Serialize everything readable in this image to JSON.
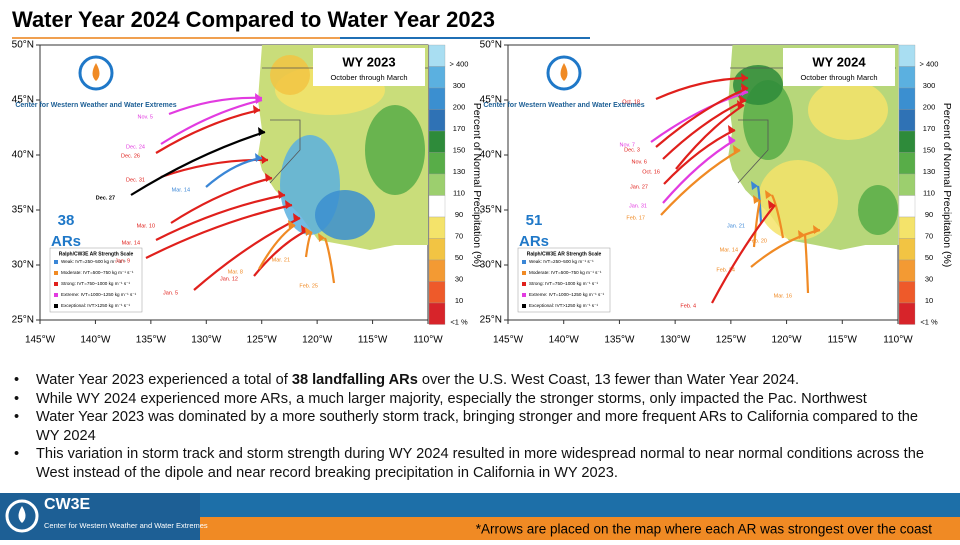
{
  "header": {
    "title": "Water Year 2024 Compared to Water Year 2023"
  },
  "maps": [
    {
      "title": "WY 2023",
      "subtitle": "October through March",
      "count": "38",
      "count_unit": "ARs",
      "arrow_labels": [
        "Nov. 5",
        "Dec. 24",
        "Dec. 26",
        "Dec. 31",
        "Dec. 27",
        "Mar. 14",
        "Mar. 10",
        "Mar. 14",
        "Jan. 9",
        "Jan. 5",
        "Jan. 12",
        "Mar. 8",
        "Mar. 21",
        "Feb. 25"
      ]
    },
    {
      "title": "WY 2024",
      "subtitle": "October through March",
      "count": "51",
      "count_unit": "ARs",
      "arrow_labels": [
        "Oct. 18",
        "Nov. 7",
        "Dec. 3",
        "Nov. 6",
        "Oct. 16",
        "Jan. 27",
        "Jan. 31",
        "Feb. 17",
        "Jan. 21",
        "Feb. 20",
        "Mar. 14",
        "Feb. 24",
        "Feb. 4",
        "Mar. 16"
      ]
    }
  ],
  "lat_labels": [
    "50°N",
    "45°N",
    "40°N",
    "35°N",
    "30°N",
    "25°N"
  ],
  "lon_labels": [
    "145°W",
    "140°W",
    "135°W",
    "130°W",
    "125°W",
    "120°W",
    "115°W",
    "110°W"
  ],
  "colorbar": {
    "title": "Percent of Normal Precipitation (%)",
    "labels": [
      "> 400",
      "300",
      "200",
      "170",
      "150",
      "130",
      "110",
      "90",
      "70",
      "50",
      "30",
      "10",
      "<1 %"
    ]
  },
  "logo_text": "Center for Western Weather and Water Extremes",
  "legend": {
    "title": "Ralph/CW3E AR Strength Scale",
    "items": [
      "Weak: IVT=250–500 kg m⁻¹ s⁻¹",
      "Moderate: IVT=500–750 kg m⁻¹ s⁻¹",
      "Strong: IVT=750–1000 kg m⁻¹ s⁻¹",
      "Extreme: IVT=1000–1250 kg m⁻¹ s⁻¹",
      "Exceptional: IVT>1250 kg m⁻¹ s⁻¹"
    ]
  },
  "bullets": [
    {
      "parts": [
        "Water Year 2023 experienced a total of ",
        "38 landfalling ARs",
        " over the U.S. West Coast, 13 fewer than Water Year 2024."
      ]
    },
    {
      "parts": [
        "While WY 2024 experienced more ARs, a much larger majority, especially the stronger storms, only impacted the Pac. Northwest"
      ]
    },
    {
      "parts": [
        "Water Year 2023 was dominated by a more southerly storm track, bringing stronger and more frequent ARs to California compared to the WY 2024"
      ]
    },
    {
      "parts": [
        "This variation in storm track and storm strength during WY 2024 resulted in more widespread normal to near normal conditions across the West instead of the dipole and near record breaking precipitation in California in WY 2023."
      ]
    }
  ],
  "footer": {
    "logo": "CW3E",
    "logo_sub": "Center for Western Weather and Water Extremes",
    "note": "*Arrows are placed on the map where each AR was strongest over the coast"
  }
}
